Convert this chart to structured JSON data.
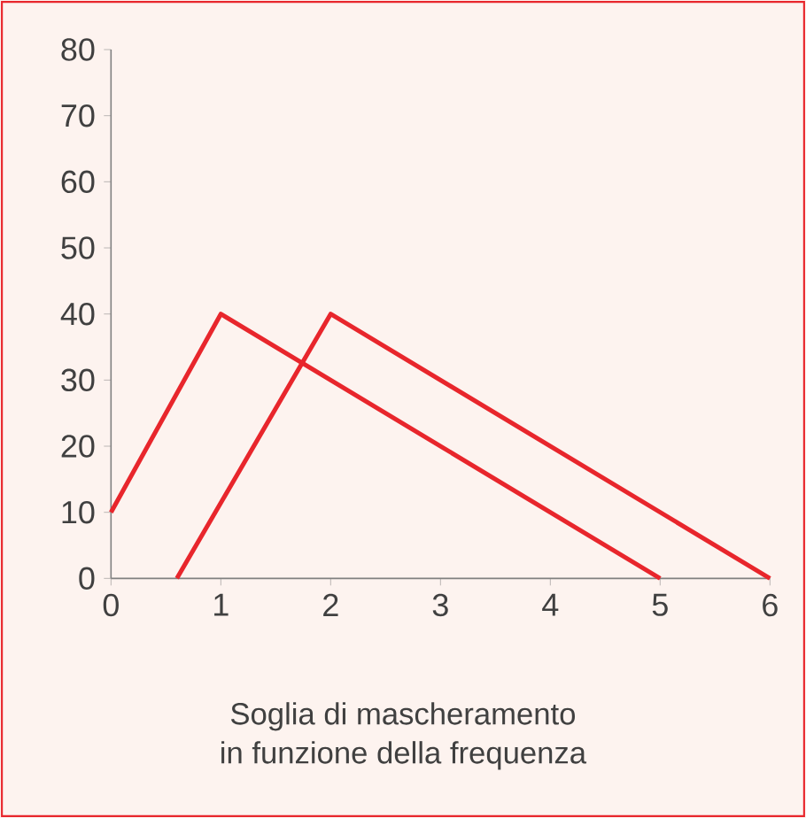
{
  "chart_data": {
    "type": "line",
    "xlim": [
      0,
      6
    ],
    "ylim": [
      0,
      80
    ],
    "xticks": [
      0,
      1,
      2,
      3,
      4,
      5,
      6
    ],
    "yticks": [
      0,
      10,
      20,
      30,
      40,
      50,
      60,
      70,
      80
    ],
    "grid": false,
    "marker": "none",
    "line_style": "solid",
    "series": [
      {
        "color": "#e8262c",
        "x": [
          0,
          1,
          5
        ],
        "values": [
          10,
          40,
          0
        ]
      },
      {
        "color": "#e8262c",
        "x": [
          0.6,
          2,
          6
        ],
        "values": [
          0,
          40,
          0
        ]
      }
    ],
    "annotations": [
      "Soglia di mascheramento",
      "in funzione della frequenza"
    ]
  }
}
